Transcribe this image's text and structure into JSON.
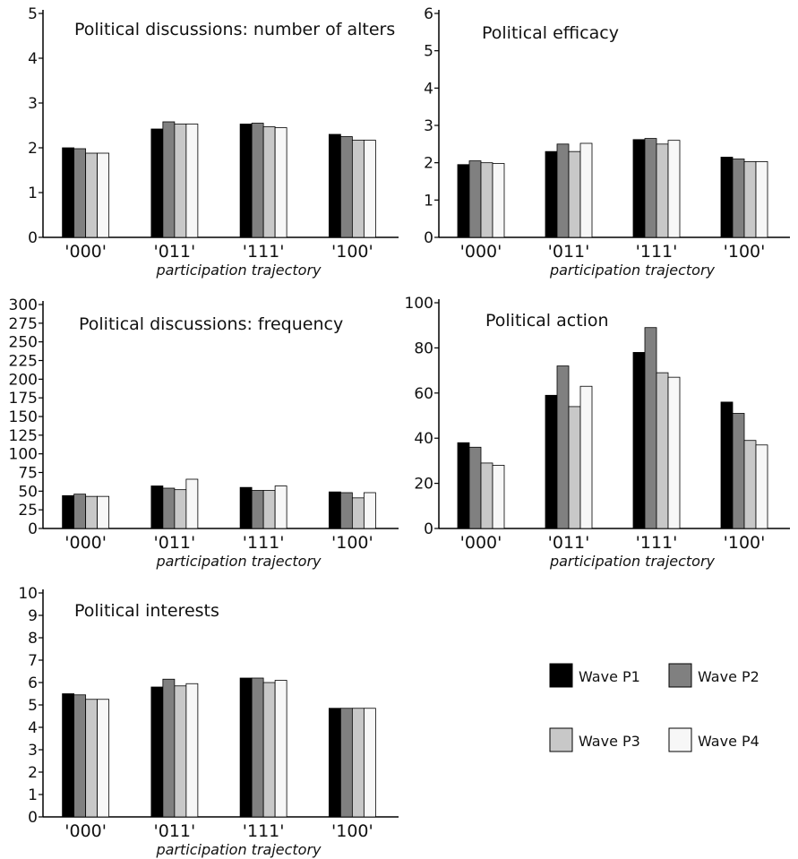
{
  "legend": {
    "position": "bottom-right",
    "items": [
      {
        "label": "Wave P1",
        "color": "#000000"
      },
      {
        "label": "Wave P2",
        "color": "#808080"
      },
      {
        "label": "Wave P3",
        "color": "#c8c8c8"
      },
      {
        "label": "Wave P4",
        "color": "#f7f7f7"
      }
    ]
  },
  "chart_data": [
    {
      "type": "bar",
      "title": "Political discussions: number of alters",
      "xlabel": "participation trajectory",
      "ylabel": "",
      "categories": [
        "'000'",
        "'011'",
        "'111'",
        "'100'"
      ],
      "ylim": [
        0,
        5
      ],
      "yticks": [
        0,
        1,
        2,
        3,
        4,
        5
      ],
      "series": [
        {
          "name": "Wave P1",
          "values": [
            2.0,
            2.42,
            2.53,
            2.3
          ]
        },
        {
          "name": "Wave P2",
          "values": [
            1.98,
            2.58,
            2.55,
            2.25
          ]
        },
        {
          "name": "Wave P3",
          "values": [
            1.88,
            2.53,
            2.47,
            2.17
          ]
        },
        {
          "name": "Wave P4",
          "values": [
            1.88,
            2.53,
            2.45,
            2.17
          ]
        }
      ]
    },
    {
      "type": "bar",
      "title": "Political efficacy",
      "xlabel": "participation trajectory",
      "ylabel": "",
      "categories": [
        "'000'",
        "'011'",
        "'111'",
        "'100'"
      ],
      "ylim": [
        0,
        6
      ],
      "yticks": [
        0,
        1,
        2,
        3,
        4,
        5,
        6
      ],
      "series": [
        {
          "name": "Wave P1",
          "values": [
            1.95,
            2.3,
            2.62,
            2.15
          ]
        },
        {
          "name": "Wave P2",
          "values": [
            2.05,
            2.5,
            2.65,
            2.1
          ]
        },
        {
          "name": "Wave P3",
          "values": [
            2.0,
            2.3,
            2.5,
            2.03
          ]
        },
        {
          "name": "Wave P4",
          "values": [
            1.98,
            2.52,
            2.6,
            2.03
          ]
        }
      ]
    },
    {
      "type": "bar",
      "title": "Political discussions: frequency",
      "xlabel": "participation trajectory",
      "ylabel": "",
      "categories": [
        "'000'",
        "'011'",
        "'111'",
        "'100'"
      ],
      "ylim": [
        0,
        300
      ],
      "yticks": [
        0,
        25,
        50,
        75,
        100,
        125,
        150,
        175,
        200,
        225,
        250,
        275,
        300
      ],
      "series": [
        {
          "name": "Wave P1",
          "values": [
            44,
            57,
            55,
            49
          ]
        },
        {
          "name": "Wave P2",
          "values": [
            46,
            54,
            51,
            48
          ]
        },
        {
          "name": "Wave P3",
          "values": [
            43,
            52,
            51,
            41
          ]
        },
        {
          "name": "Wave P4",
          "values": [
            43,
            66,
            57,
            48
          ]
        }
      ]
    },
    {
      "type": "bar",
      "title": "Political action",
      "xlabel": "participation trajectory",
      "ylabel": "",
      "categories": [
        "'000'",
        "'011'",
        "'111'",
        "'100'"
      ],
      "ylim": [
        0,
        100
      ],
      "yticks": [
        0,
        20,
        40,
        60,
        80,
        100
      ],
      "series": [
        {
          "name": "Wave P1",
          "values": [
            38,
            59,
            78,
            56
          ]
        },
        {
          "name": "Wave P2",
          "values": [
            36,
            72,
            89,
            51
          ]
        },
        {
          "name": "Wave P3",
          "values": [
            29,
            54,
            69,
            39
          ]
        },
        {
          "name": "Wave P4",
          "values": [
            28,
            63,
            67,
            37
          ]
        }
      ]
    },
    {
      "type": "bar",
      "title": "Political interests",
      "xlabel": "participation trajectory",
      "ylabel": "",
      "categories": [
        "'000'",
        "'011'",
        "'111'",
        "'100'"
      ],
      "ylim": [
        0,
        10
      ],
      "yticks": [
        0,
        1,
        2,
        3,
        4,
        5,
        6,
        7,
        8,
        9,
        10
      ],
      "series": [
        {
          "name": "Wave P1",
          "values": [
            5.5,
            5.8,
            6.2,
            4.85
          ]
        },
        {
          "name": "Wave P2",
          "values": [
            5.45,
            6.15,
            6.2,
            4.85
          ]
        },
        {
          "name": "Wave P3",
          "values": [
            5.25,
            5.85,
            6.0,
            4.85
          ]
        },
        {
          "name": "Wave P4",
          "values": [
            5.25,
            5.95,
            6.1,
            4.85
          ]
        }
      ]
    }
  ]
}
